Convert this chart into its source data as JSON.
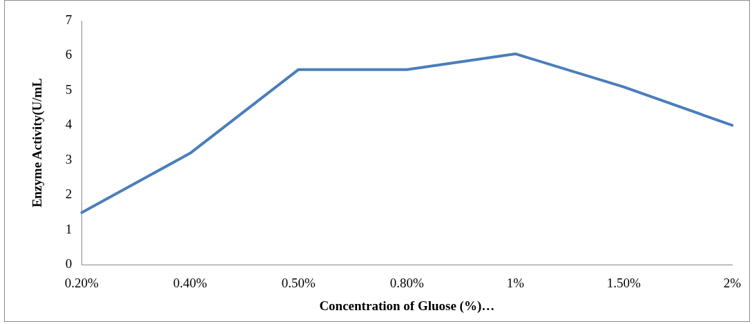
{
  "chart_data": {
    "type": "line",
    "xlabel": "Concentration of Gluose (%)…",
    "ylabel": "Enzyme Activity(U/mL",
    "categories": [
      "0.20%",
      "0.40%",
      "0.50%",
      "0.80%",
      "1%",
      "1.50%",
      "2%"
    ],
    "series": [
      {
        "color": "#4a7ebb",
        "values": [
          1.5,
          3.2,
          5.6,
          5.6,
          6.05,
          5.1,
          4.0
        ]
      }
    ],
    "ylim": [
      0,
      7
    ],
    "yticks": [
      0,
      1,
      2,
      3,
      4,
      5,
      6,
      7
    ],
    "grid": false,
    "legend": false,
    "marker": "none",
    "line_style": "solid"
  }
}
